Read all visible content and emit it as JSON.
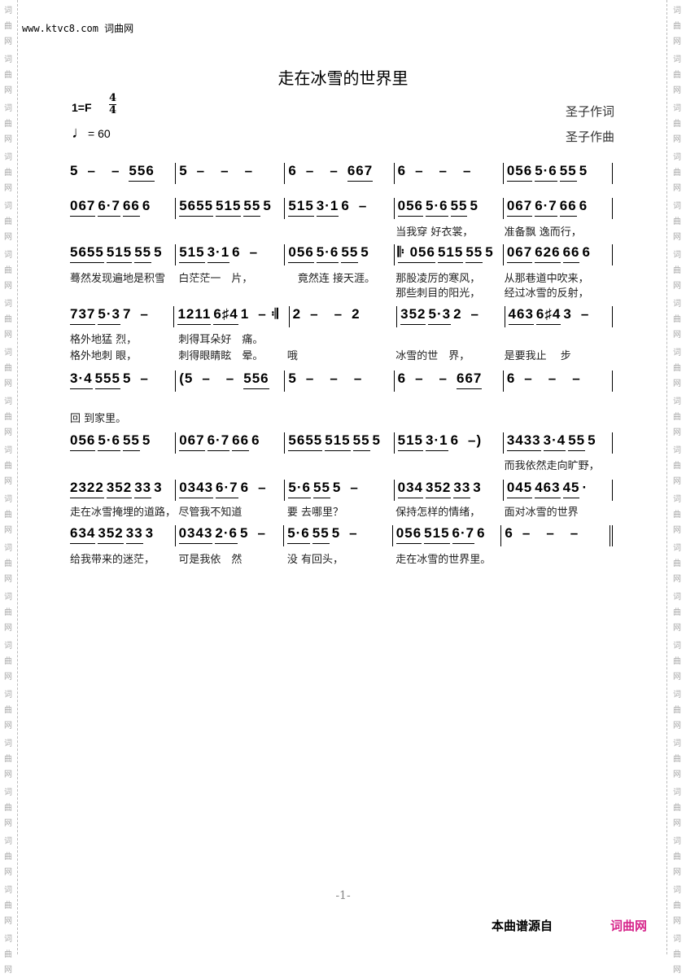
{
  "watermark": "词曲网",
  "site": "www.ktvc8.com 词曲网",
  "title": "走在冰雪的世界里",
  "key": "1=F",
  "time_signature": {
    "top": "4",
    "bottom": "4"
  },
  "tempo": "= 60",
  "lyricist": "圣子作词",
  "composer": "圣子作曲",
  "rows": [
    {
      "measures": [
        [
          "5",
          "–",
          "–",
          "556"
        ],
        [
          "5",
          "–",
          "–",
          "–"
        ],
        [
          "6",
          "–",
          "–",
          "667"
        ],
        [
          "6",
          "–",
          "–",
          "–"
        ],
        [
          "056",
          "5·6",
          "55",
          "5"
        ]
      ]
    },
    {
      "measures": [
        [
          "067",
          "6·7",
          "66",
          "6"
        ],
        [
          "5655",
          "515",
          "55",
          "5"
        ],
        [
          "515",
          "3·1",
          "6",
          "–"
        ],
        [
          "056",
          "5·6",
          "55",
          "5"
        ],
        [
          "067",
          "6·7",
          "66",
          "6"
        ]
      ],
      "lyrics": [
        [
          "",
          "",
          "",
          "当我穿 好衣裳，",
          "准备飘 逸而行，"
        ]
      ]
    },
    {
      "measures": [
        [
          "5655",
          "515",
          "55",
          "5"
        ],
        [
          "515",
          "3·1",
          "6",
          "–"
        ],
        [
          "056",
          "5·6",
          "55",
          "5"
        ],
        [
          "𝄆 056",
          "515",
          "55",
          "5"
        ],
        [
          "067",
          "626",
          "66",
          "6"
        ]
      ],
      "lyrics": [
        [
          "蓦然发现遍地是积雪",
          "白茫茫一　片，",
          "　竟然连 接天涯。",
          "那股凌厉的寒风，",
          "从那巷道中吹来，"
        ],
        [
          "",
          "",
          "",
          "那些刺目的阳光，",
          "经过冰雪的反射，"
        ]
      ]
    },
    {
      "measures": [
        [
          "737",
          "5·3",
          "7",
          "–"
        ],
        [
          "1211",
          "6♯4",
          "1",
          "– 𝄇"
        ],
        [
          "2",
          "–",
          "–",
          "2"
        ],
        [
          "352",
          "5·3",
          "2",
          "–"
        ],
        [
          "463",
          "6♯4",
          "3",
          "–"
        ]
      ],
      "lyrics": [
        [
          "格外地猛 烈，",
          "刺得耳朵好　痛。",
          "",
          "",
          ""
        ],
        [
          "格外地刺 眼，",
          "刺得眼睛眩　晕。",
          "哦",
          "冰雪的世　界，",
          "是要我止　 步"
        ]
      ]
    },
    {
      "measures": [
        [
          "3·4",
          "555",
          "5",
          "–"
        ],
        [
          "(5",
          "–",
          "–",
          "556"
        ],
        [
          "5",
          "–",
          "–",
          "–"
        ],
        [
          "6",
          "–",
          "–",
          "667"
        ],
        [
          "6",
          "–",
          "–",
          "–"
        ]
      ],
      "lyrics": [
        [
          "回 到家里。",
          "",
          "",
          "",
          ""
        ]
      ]
    },
    {
      "measures": [
        [
          "056",
          "5·6",
          "55",
          "5"
        ],
        [
          "067",
          "6·7",
          "66",
          "6"
        ],
        [
          "5655",
          "515",
          "55",
          "5"
        ],
        [
          "515",
          "3·1",
          "6",
          "–)"
        ],
        [
          "3433",
          "3·4",
          "55",
          "5"
        ]
      ],
      "lyrics": [
        [
          "",
          "",
          "",
          "",
          "而我依然走向旷野，"
        ]
      ]
    },
    {
      "measures": [
        [
          "2322",
          "352",
          "33",
          "3"
        ],
        [
          "0343",
          "6·7",
          "6",
          "–"
        ],
        [
          "5·6",
          "55",
          "5",
          "–"
        ],
        [
          "034",
          "352",
          "33",
          "3"
        ],
        [
          "045",
          "463",
          "45",
          "·"
        ]
      ],
      "lyrics": [
        [
          "走在冰雪掩埋的道路，",
          "尽管我不知道",
          "要 去哪里？",
          "保持怎样的情绪，",
          "面对冰雪的世界"
        ]
      ]
    },
    {
      "measures": [
        [
          "634",
          "352",
          "33",
          "3"
        ],
        [
          "0343",
          "2·6",
          "5",
          "–"
        ],
        [
          "5·6",
          "55",
          "5",
          "–"
        ],
        [
          "056",
          "515",
          "6·7",
          "6"
        ],
        [
          "6",
          "–",
          "–",
          "–"
        ]
      ],
      "lyrics": [
        [
          "给我带来的迷茫，",
          "可是我依　然",
          "没 有回头，",
          "走在冰雪的世界里。",
          ""
        ]
      ]
    }
  ],
  "page_number": "-1-",
  "footer": {
    "source_label": "本曲谱源自",
    "brand": "词曲网",
    "brand_color": "#d6248a"
  }
}
